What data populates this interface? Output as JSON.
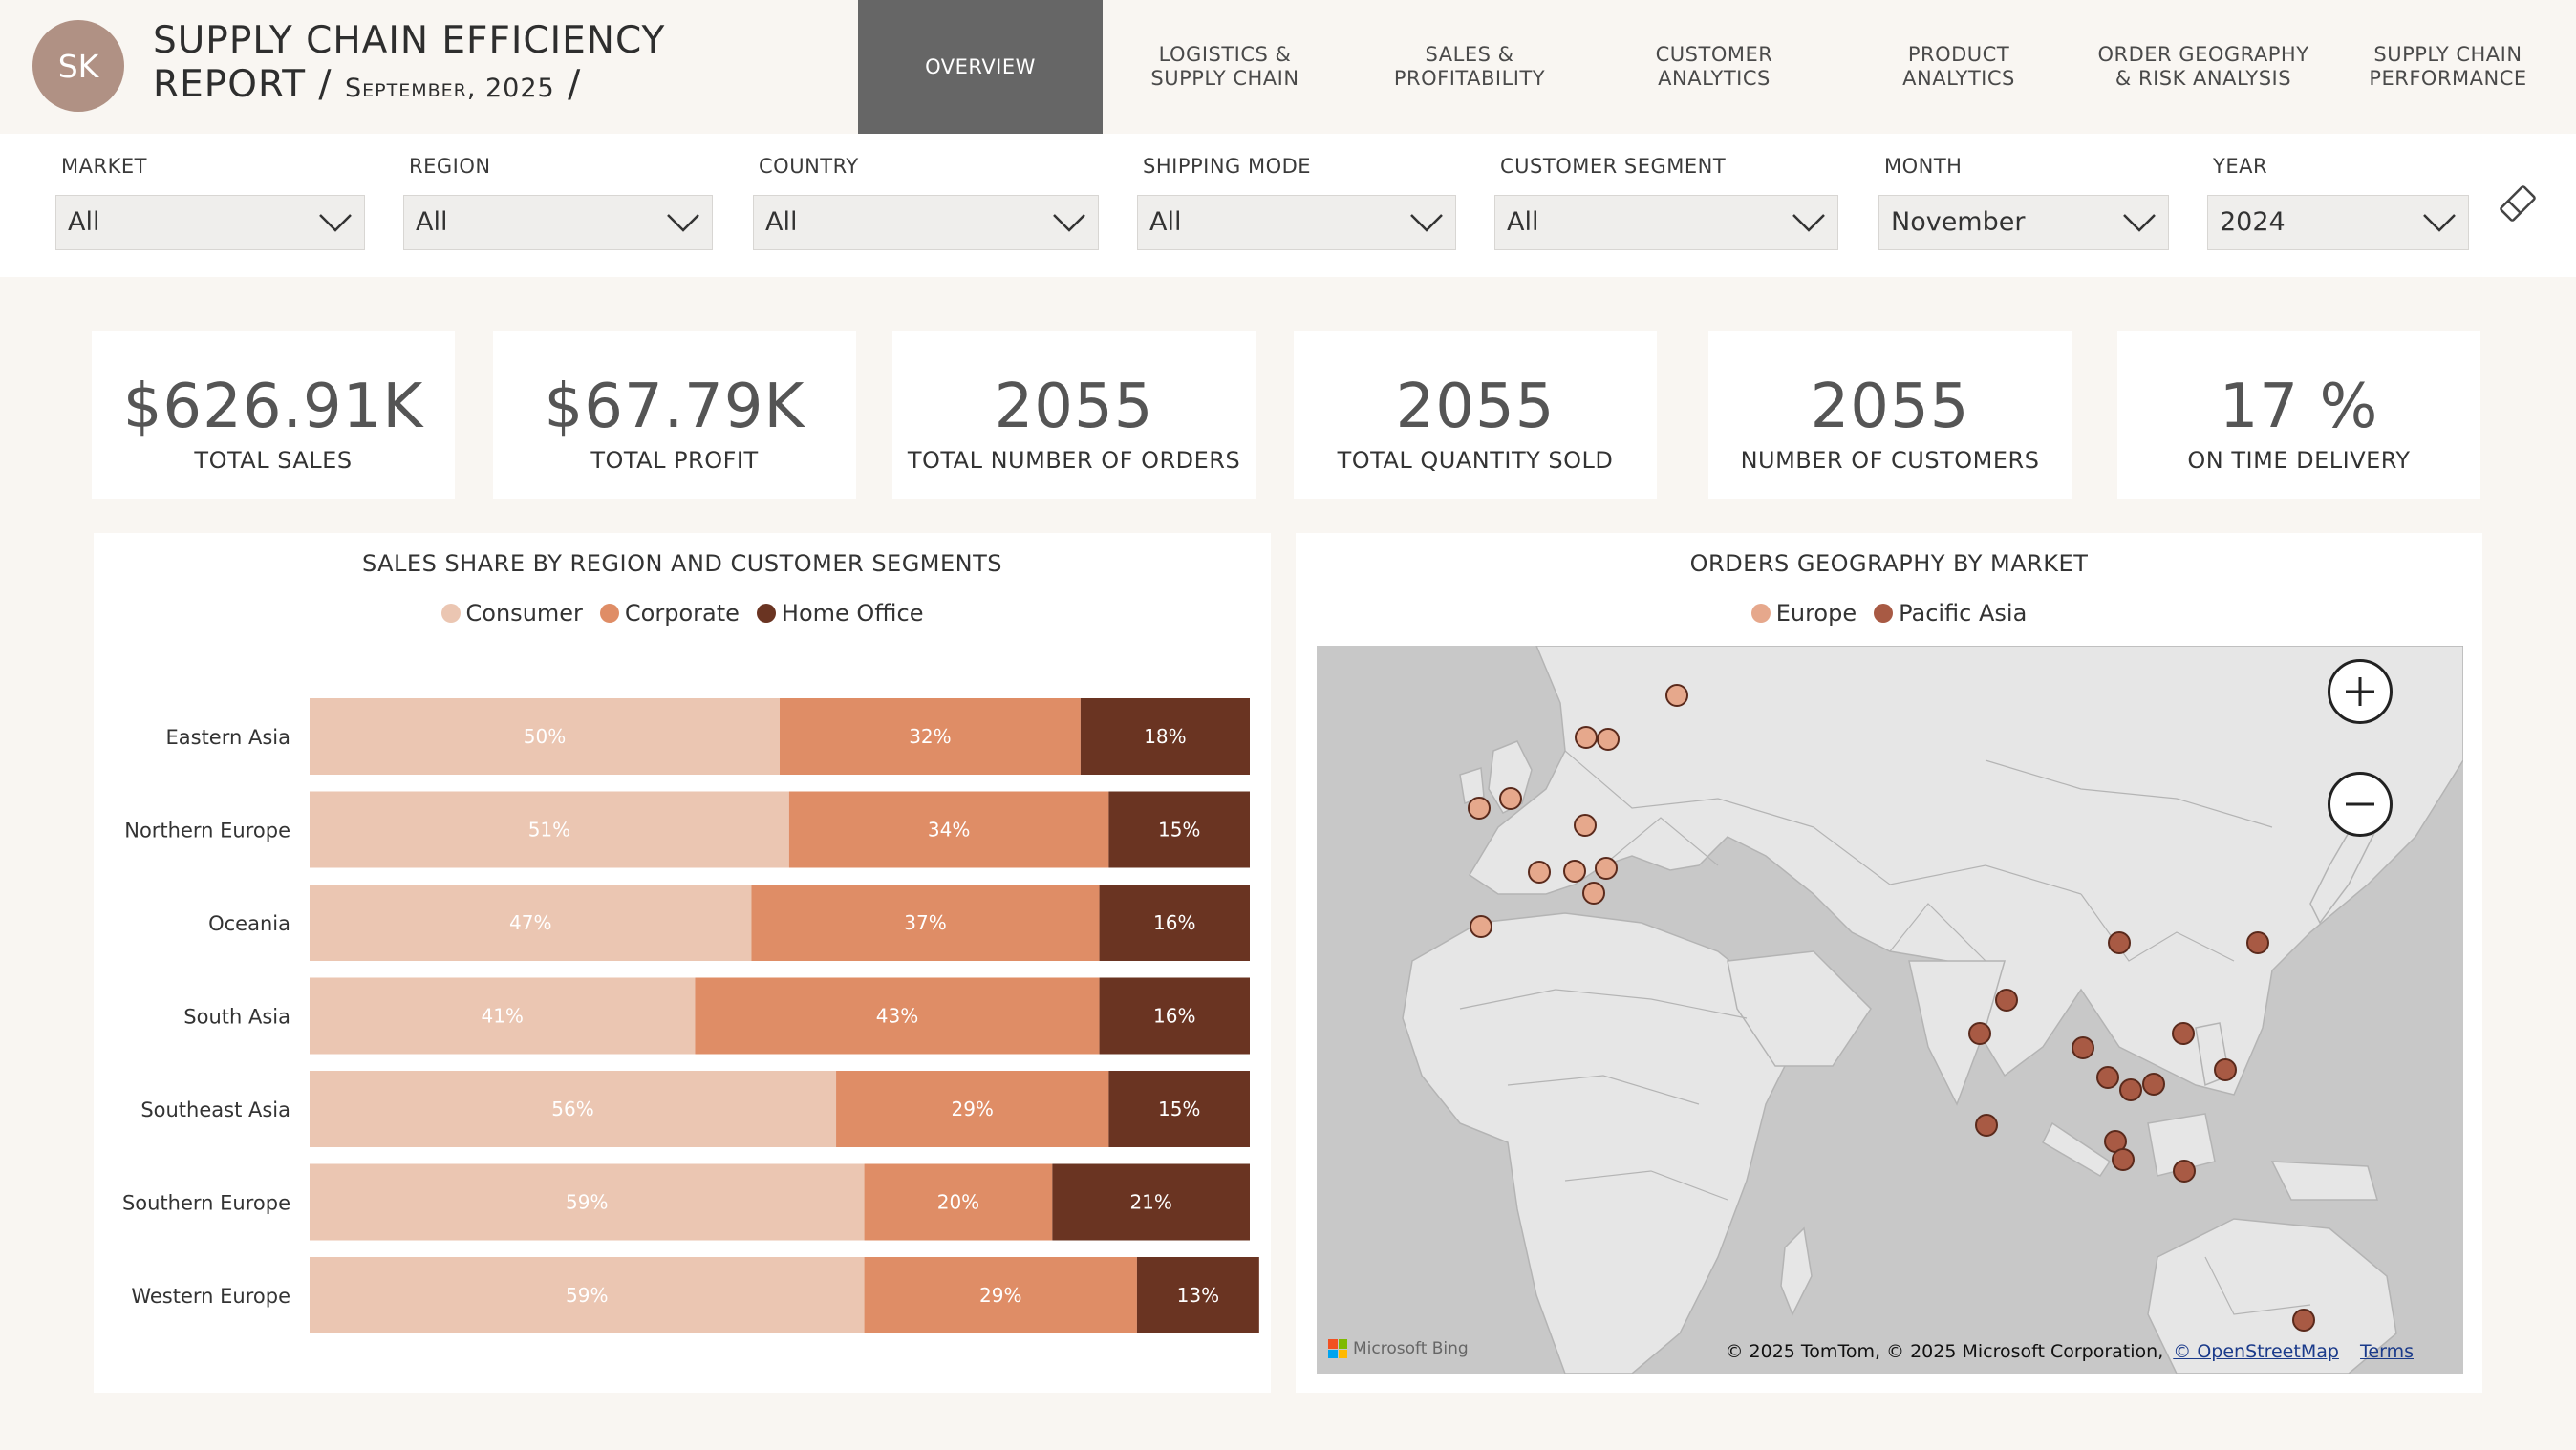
{
  "header": {
    "avatar_initials": "SK",
    "title_line1": "SUPPLY CHAIN EFFICIENCY",
    "title_line2_prefix": "REPORT / ",
    "title_date": "September, 2025",
    "title_line2_suffix": " /"
  },
  "nav": {
    "tabs": [
      {
        "label": "OVERVIEW",
        "active": true
      },
      {
        "label": "LOGISTICS &\nSUPPLY CHAIN",
        "active": false
      },
      {
        "label": "SALES &\nPROFITABILITY",
        "active": false
      },
      {
        "label": "CUSTOMER\nANALYTICS",
        "active": false
      },
      {
        "label": "PRODUCT\nANALYTICS",
        "active": false
      },
      {
        "label": "ORDER GEOGRAPHY\n& RISK ANALYSIS",
        "active": false
      },
      {
        "label": "SUPPLY CHAIN\nPERFORMANCE",
        "active": false
      }
    ]
  },
  "filters": [
    {
      "label": "MARKET",
      "value": "All"
    },
    {
      "label": "REGION",
      "value": "All"
    },
    {
      "label": "COUNTRY",
      "value": "All"
    },
    {
      "label": "SHIPPING MODE",
      "value": "All"
    },
    {
      "label": "CUSTOMER SEGMENT",
      "value": "All"
    },
    {
      "label": "MONTH",
      "value": "November"
    },
    {
      "label": "YEAR",
      "value": "2024"
    }
  ],
  "kpis": [
    {
      "value": "$626.91K",
      "label": "TOTAL SALES"
    },
    {
      "value": "$67.79K",
      "label": "TOTAL PROFIT"
    },
    {
      "value": "2055",
      "label": "TOTAL NUMBER OF ORDERS"
    },
    {
      "value": "2055",
      "label": "TOTAL QUANTITY SOLD"
    },
    {
      "value": "2055",
      "label": "NUMBER OF CUSTOMERS"
    },
    {
      "value": "17 %",
      "label": "ON TIME DELIVERY"
    }
  ],
  "bar_panel": {
    "title": "SALES SHARE BY REGION AND CUSTOMER SEGMENTS"
  },
  "chart_data": {
    "type": "bar",
    "orientation": "horizontal",
    "stacked": "100%",
    "title": "SALES SHARE BY REGION AND CUSTOMER SEGMENTS",
    "categories": [
      "Eastern Asia",
      "Northern Europe",
      "Oceania",
      "South Asia",
      "Southeast Asia",
      "Southern Europe",
      "Western Europe"
    ],
    "series": [
      {
        "name": "Consumer",
        "values": [
          50,
          51,
          47,
          41,
          56,
          59,
          59
        ],
        "color": "#ebc6b2",
        "label_color": "#ffffff"
      },
      {
        "name": "Corporate",
        "values": [
          32,
          34,
          37,
          43,
          29,
          20,
          29
        ],
        "color": "#df8d66",
        "label_color": "#ffffff"
      },
      {
        "name": "Home Office",
        "values": [
          18,
          15,
          16,
          16,
          15,
          21,
          13
        ],
        "color": "#6a3422",
        "label_color": "#ffffff"
      }
    ],
    "legend": "top-center",
    "grid": false
  },
  "map_panel": {
    "title": "ORDERS GEOGRAPHY BY MARKET",
    "legend": [
      {
        "name": "Europe",
        "color": "#e6a88c"
      },
      {
        "name": "Pacific Asia",
        "color": "#a85a44"
      }
    ],
    "bing_label": "Microsoft Bing",
    "attribution": "© 2025 TomTom, © 2025 Microsoft Corporation, ",
    "osm_link": "© OpenStreetMap",
    "terms_link": "Terms"
  },
  "colors": {
    "accent_active_tab": "#666666",
    "background": "#f9f6f2",
    "consumer": "#ebc6b2",
    "corporate": "#df8d66",
    "home_office": "#6a3422"
  }
}
